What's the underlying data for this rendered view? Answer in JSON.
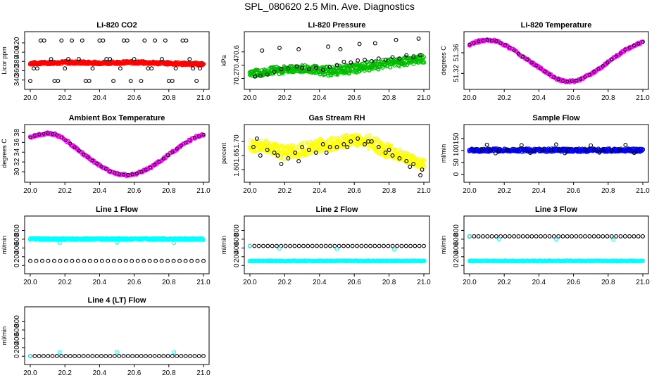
{
  "figure_title": "SPL_080620  2.5 Min. Ave. Diagnostics",
  "chart_data": [
    {
      "type": "scatter",
      "title": "Li-820 CO2",
      "ylabel": "Licor ppm",
      "xticks": [
        "20.0",
        "20.2",
        "20.4",
        "20.6",
        "20.8",
        "21.0"
      ],
      "yticks": [
        "340",
        "360",
        "380",
        "400",
        "420"
      ],
      "xlim": [
        20.0,
        21.0
      ],
      "ylim": [
        332,
        432
      ],
      "series": [
        {
          "name": "band",
          "color": "#ff0000",
          "kind": "band",
          "x": [
            20.0,
            20.2,
            20.4,
            20.6,
            20.8,
            21.0
          ],
          "lo": [
            373,
            375,
            374,
            375,
            373,
            371
          ],
          "hi": [
            379,
            381,
            380,
            381,
            379,
            377
          ]
        },
        {
          "name": "points",
          "color": "#000000",
          "kind": "points",
          "x": [
            20.0,
            20.08,
            20.16,
            20.24,
            20.32,
            20.4,
            20.48,
            20.56,
            20.64,
            20.72,
            20.8,
            20.88,
            20.96,
            20.02,
            20.12,
            20.2,
            20.28,
            20.36,
            20.44,
            20.52,
            20.6,
            20.68,
            20.76,
            20.84,
            20.92,
            20.98,
            20.06,
            20.18,
            20.3,
            20.42,
            20.54,
            20.66,
            20.78,
            20.9,
            20.04,
            20.14,
            20.22,
            20.34,
            20.46,
            20.58,
            20.7,
            20.82,
            20.94
          ],
          "y": [
            338,
            425,
            338,
            425,
            338,
            425,
            338,
            425,
            338,
            425,
            338,
            425,
            338,
            365,
            385,
            365,
            385,
            365,
            385,
            365,
            385,
            365,
            385,
            365,
            385,
            365,
            425,
            425,
            425,
            425,
            425,
            425,
            425,
            425,
            365,
            338,
            385,
            338,
            385,
            338,
            365,
            338,
            365
          ]
        }
      ]
    },
    {
      "type": "scatter",
      "title": "Li-820 Pressure",
      "ylabel": "kPa",
      "xticks": [
        "20.0",
        "20.2",
        "20.4",
        "20.6",
        "20.8",
        "21.0"
      ],
      "yticks": [
        "70.2",
        "70.4",
        "70.6"
      ],
      "xlim": [
        20.0,
        21.0
      ],
      "ylim": [
        70.12,
        70.82
      ],
      "series": [
        {
          "name": "band",
          "color": "#00bb00",
          "kind": "band",
          "x": [
            20.0,
            20.15,
            20.3,
            20.45,
            20.55,
            20.7,
            20.85,
            21.0
          ],
          "lo": [
            70.22,
            70.26,
            70.3,
            70.24,
            70.26,
            70.32,
            70.38,
            70.44
          ],
          "hi": [
            70.32,
            70.38,
            70.4,
            70.38,
            70.4,
            70.46,
            70.52,
            70.56
          ]
        },
        {
          "name": "points",
          "color": "#000000",
          "kind": "points",
          "x": [
            20.03,
            20.06,
            20.1,
            20.14,
            20.18,
            20.22,
            20.27,
            20.3,
            20.34,
            20.38,
            20.42,
            20.46,
            20.5,
            20.54,
            20.58,
            20.62,
            20.66,
            20.7,
            20.74,
            20.78,
            20.82,
            20.86,
            20.9,
            20.94,
            20.98,
            20.07,
            20.17,
            20.28,
            20.45,
            20.52,
            20.63,
            20.72,
            20.84,
            20.97
          ],
          "y": [
            70.23,
            70.24,
            70.26,
            70.3,
            70.34,
            70.35,
            70.38,
            70.36,
            70.34,
            70.36,
            70.33,
            70.37,
            70.4,
            70.45,
            70.44,
            70.47,
            70.48,
            70.46,
            70.5,
            70.48,
            70.52,
            70.5,
            70.55,
            70.52,
            70.55,
            70.62,
            70.66,
            70.64,
            70.68,
            70.64,
            70.72,
            70.73,
            70.78,
            70.8
          ]
        }
      ]
    },
    {
      "type": "line",
      "title": "Li-820 Temperature",
      "ylabel": "degrees C",
      "xticks": [
        "20.0",
        "20.2",
        "20.4",
        "20.6",
        "20.8",
        "21.0"
      ],
      "yticks": [
        "51.32",
        "51.36"
      ],
      "xlim": [
        20.0,
        21.0
      ],
      "ylim": [
        51.3,
        51.39
      ],
      "series": [
        {
          "name": "temperature",
          "color": "#ff00ff",
          "kind": "curve",
          "x": [
            20.0,
            20.05,
            20.1,
            20.15,
            20.2,
            20.25,
            20.3,
            20.35,
            20.4,
            20.45,
            20.5,
            20.55,
            20.6,
            20.65,
            20.7,
            20.75,
            20.8,
            20.85,
            20.9,
            20.95,
            21.0
          ],
          "y": [
            51.376,
            51.382,
            51.385,
            51.383,
            51.376,
            51.366,
            51.354,
            51.343,
            51.332,
            51.32,
            51.31,
            51.304,
            51.305,
            51.31,
            51.319,
            51.33,
            51.342,
            51.354,
            51.366,
            51.374,
            51.381
          ]
        }
      ]
    },
    {
      "type": "line",
      "title": "Ambient Box Temperature",
      "ylabel": "degrees C",
      "xticks": [
        "20.0",
        "20.2",
        "20.4",
        "20.6",
        "20.8",
        "21.0"
      ],
      "yticks": [
        "30",
        "32",
        "34",
        "36",
        "38"
      ],
      "xlim": [
        20.0,
        21.0
      ],
      "ylim": [
        29.0,
        38.5
      ],
      "series": [
        {
          "name": "temperature",
          "color": "#ff00ff",
          "kind": "curve",
          "x": [
            20.0,
            20.05,
            20.1,
            20.15,
            20.2,
            20.25,
            20.3,
            20.35,
            20.4,
            20.45,
            20.5,
            20.55,
            20.6,
            20.65,
            20.7,
            20.75,
            20.8,
            20.85,
            20.9,
            20.95,
            21.0
          ],
          "y": [
            37.0,
            37.6,
            37.9,
            37.6,
            36.6,
            35.2,
            33.8,
            32.5,
            31.3,
            30.3,
            29.6,
            29.3,
            29.5,
            30.1,
            31.0,
            32.2,
            33.5,
            34.8,
            36.0,
            37.0,
            37.6
          ]
        }
      ]
    },
    {
      "type": "scatter",
      "title": "Gas Stream RH",
      "ylabel": "percent",
      "xticks": [
        "20.0",
        "20.2",
        "20.4",
        "20.6",
        "20.8",
        "21.0"
      ],
      "yticks": [
        "1.60",
        "1.65",
        "1.70"
      ],
      "xlim": [
        20.0,
        21.0
      ],
      "ylim": [
        1.575,
        1.74
      ],
      "series": [
        {
          "name": "band",
          "color": "#ffff00",
          "kind": "band",
          "x": [
            20.0,
            20.1,
            20.2,
            20.3,
            20.4,
            20.5,
            20.6,
            20.65,
            20.7,
            20.8,
            20.9,
            21.0
          ],
          "lo": [
            1.665,
            1.66,
            1.635,
            1.645,
            1.665,
            1.67,
            1.685,
            1.685,
            1.67,
            1.64,
            1.625,
            1.6
          ],
          "hi": [
            1.705,
            1.705,
            1.685,
            1.695,
            1.71,
            1.715,
            1.73,
            1.73,
            1.72,
            1.69,
            1.66,
            1.635
          ]
        },
        {
          "name": "points",
          "color": "#000000",
          "kind": "points",
          "x": [
            20.02,
            20.06,
            20.1,
            20.14,
            20.18,
            20.22,
            20.26,
            20.3,
            20.34,
            20.38,
            20.42,
            20.46,
            20.5,
            20.54,
            20.58,
            20.62,
            20.66,
            20.7,
            20.74,
            20.78,
            20.82,
            20.86,
            20.9,
            20.94,
            20.98,
            20.04,
            20.16,
            20.28,
            20.44,
            20.56,
            20.68,
            20.8,
            20.92,
            20.99
          ],
          "y": [
            1.68,
            1.65,
            1.67,
            1.66,
            1.62,
            1.64,
            1.66,
            1.68,
            1.67,
            1.66,
            1.69,
            1.68,
            1.68,
            1.69,
            1.7,
            1.71,
            1.69,
            1.7,
            1.68,
            1.66,
            1.65,
            1.64,
            1.63,
            1.62,
            1.58,
            1.71,
            1.65,
            1.63,
            1.66,
            1.68,
            1.7,
            1.67,
            1.61,
            1.6
          ]
        }
      ]
    },
    {
      "type": "scatter",
      "title": "Sample Flow",
      "ylabel": "ml/min",
      "xticks": [
        "20.0",
        "20.2",
        "20.4",
        "20.6",
        "20.8",
        "21.0"
      ],
      "yticks": [
        "0",
        "50",
        "100",
        "150"
      ],
      "xlim": [
        20.0,
        21.0
      ],
      "ylim": [
        -10,
        185
      ],
      "series": [
        {
          "name": "band",
          "color": "#0000ff",
          "kind": "band",
          "x": [
            20.0,
            21.0
          ],
          "lo": [
            94,
            94
          ],
          "hi": [
            108,
            108
          ]
        },
        {
          "name": "points",
          "color": "#000000",
          "kind": "points",
          "x": [
            20.02,
            20.07,
            20.12,
            20.17,
            20.22,
            20.27,
            20.32,
            20.37,
            20.42,
            20.47,
            20.52,
            20.57,
            20.62,
            20.67,
            20.72,
            20.77,
            20.82,
            20.87,
            20.92,
            20.97,
            20.1,
            20.3,
            20.5,
            20.7,
            20.9,
            20.15,
            20.35,
            20.55,
            20.75,
            20.95
          ],
          "y": [
            101,
            102,
            101,
            100,
            103,
            102,
            101,
            100,
            102,
            101,
            100,
            102,
            101,
            103,
            102,
            101,
            100,
            102,
            101,
            100,
            124,
            122,
            125,
            121,
            123,
            88,
            90,
            89,
            91,
            90
          ]
        }
      ]
    },
    {
      "type": "scatter",
      "title": "Line 1 Flow",
      "ylabel": "ml/min",
      "xticks": [
        "20.0",
        "20.2",
        "20.4",
        "20.6",
        "20.8",
        "21.0"
      ],
      "yticks": [
        "0",
        "200",
        "400",
        "600",
        "800"
      ],
      "xlim": [
        20.0,
        21.0
      ],
      "ylim": [
        -60,
        1000
      ],
      "series": [
        {
          "name": "band",
          "color": "#00ffff",
          "kind": "band",
          "x": [
            20.0,
            21.0
          ],
          "lo": [
            585,
            585
          ],
          "hi": [
            625,
            625
          ]
        },
        {
          "name": "low",
          "color": "#000000",
          "kind": "row",
          "y": 105,
          "n": 30
        },
        {
          "name": "outliers",
          "color": "#00ffff",
          "kind": "points",
          "x": [
            20.17,
            20.5,
            20.83
          ],
          "y": [
            520,
            530,
            515
          ]
        }
      ]
    },
    {
      "type": "scatter",
      "title": "Line 2 Flow",
      "ylabel": "ml/min",
      "xticks": [
        "20.0",
        "20.2",
        "20.4",
        "20.6",
        "20.8",
        "21.0"
      ],
      "yticks": [
        "0",
        "200",
        "400",
        "600",
        "800"
      ],
      "xlim": [
        20.0,
        21.0
      ],
      "ylim": [
        -60,
        1000
      ],
      "series": [
        {
          "name": "low",
          "color": "#00ffff",
          "kind": "band",
          "x": [
            20.0,
            21.0
          ],
          "lo": [
            95,
            95
          ],
          "hi": [
            115,
            115
          ]
        },
        {
          "name": "mid",
          "color": "#000000",
          "kind": "row",
          "y": 445,
          "n": 40
        },
        {
          "name": "outliers",
          "color": "#00ffff",
          "kind": "points",
          "x": [
            20.0,
            20.17,
            20.5,
            20.83
          ],
          "y": [
            445,
            385,
            380,
            370
          ]
        }
      ]
    },
    {
      "type": "scatter",
      "title": "Line 3 Flow",
      "ylabel": "ml/min",
      "xticks": [
        "20.0",
        "20.2",
        "20.4",
        "20.6",
        "20.8",
        "21.0"
      ],
      "yticks": [
        "0",
        "200",
        "400",
        "600",
        "800"
      ],
      "xlim": [
        20.0,
        21.0
      ],
      "ylim": [
        -60,
        1000
      ],
      "series": [
        {
          "name": "low",
          "color": "#00ffff",
          "kind": "band",
          "x": [
            20.0,
            21.0
          ],
          "lo": [
            95,
            95
          ],
          "hi": [
            115,
            115
          ]
        },
        {
          "name": "high",
          "color": "#000000",
          "kind": "row",
          "y": 665,
          "n": 40
        },
        {
          "name": "outliers",
          "color": "#00ffff",
          "kind": "points",
          "x": [
            20.0,
            20.17,
            20.5,
            20.83
          ],
          "y": [
            670,
            600,
            595,
            585
          ]
        }
      ]
    },
    {
      "type": "scatter",
      "title": "Line 4 (LT) Flow",
      "ylabel": "ml/min",
      "xticks": [
        "20.0",
        "20.2",
        "20.4",
        "20.6",
        "20.8",
        "21.0"
      ],
      "yticks": [
        "0",
        "200",
        "400",
        "600",
        "800"
      ],
      "xlim": [
        20.0,
        21.0
      ],
      "ylim": [
        -60,
        1000
      ],
      "series": [
        {
          "name": "base",
          "color": "#000000",
          "kind": "row",
          "y": 5,
          "n": 40
        },
        {
          "name": "outliers",
          "color": "#00ffff",
          "kind": "points",
          "x": [
            20.0,
            20.17,
            20.5,
            20.83
          ],
          "y": [
            8,
            95,
            100,
            98
          ]
        }
      ]
    }
  ]
}
